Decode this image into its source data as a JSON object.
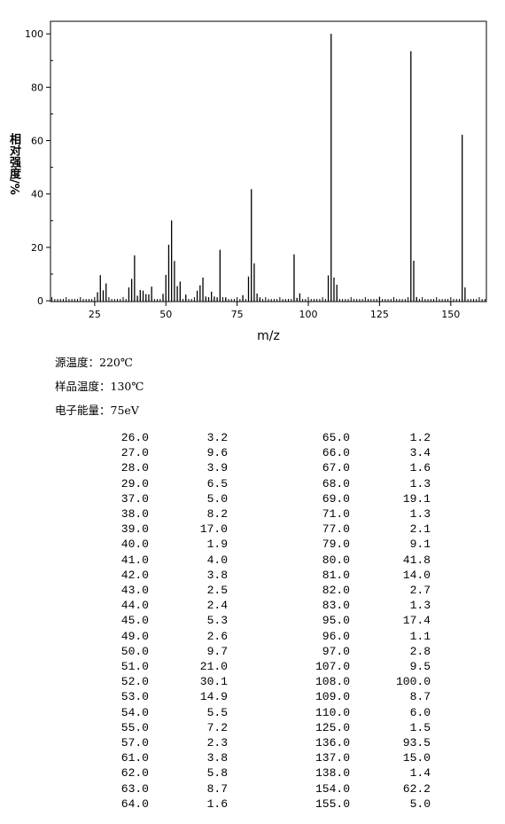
{
  "chart_data": {
    "type": "stick",
    "x_label": "m/z",
    "y_label": "相对强度/%",
    "x": [
      26,
      27,
      28,
      29,
      37,
      38,
      39,
      40,
      41,
      42,
      43,
      44,
      45,
      49,
      50,
      51,
      52,
      53,
      54,
      55,
      57,
      61,
      62,
      63,
      64,
      65,
      66,
      67,
      68,
      69,
      71,
      77,
      79,
      80,
      81,
      82,
      83,
      95,
      96,
      97,
      107,
      108,
      109,
      110,
      125,
      136,
      137,
      138,
      154,
      155
    ],
    "x_labels": [
      "26.0",
      "27.0",
      "28.0",
      "29.0",
      "37.0",
      "38.0",
      "39.0",
      "40.0",
      "41.0",
      "42.0",
      "43.0",
      "44.0",
      "45.0",
      "49.0",
      "50.0",
      "51.0",
      "52.0",
      "53.0",
      "54.0",
      "55.0",
      "57.0",
      "61.0",
      "62.0",
      "63.0",
      "64.0",
      "65.0",
      "66.0",
      "67.0",
      "68.0",
      "69.0",
      "71.0",
      "77.0",
      "79.0",
      "80.0",
      "81.0",
      "82.0",
      "83.0",
      "95.0",
      "96.0",
      "97.0",
      "107.0",
      "108.0",
      "109.0",
      "110.0",
      "125.0",
      "136.0",
      "137.0",
      "138.0",
      "154.0",
      "155.0"
    ],
    "values": [
      3.2,
      9.6,
      3.9,
      6.5,
      5.0,
      8.2,
      17.0,
      1.9,
      4.0,
      3.8,
      2.5,
      2.4,
      5.3,
      2.6,
      9.7,
      21.0,
      30.1,
      14.9,
      5.5,
      7.2,
      2.3,
      3.8,
      5.8,
      8.7,
      1.6,
      1.2,
      3.4,
      1.6,
      1.3,
      19.1,
      1.3,
      2.1,
      9.1,
      41.8,
      14.0,
      2.7,
      1.3,
      17.4,
      1.1,
      2.8,
      9.5,
      100.0,
      8.7,
      6.0,
      1.5,
      93.5,
      15.0,
      1.4,
      62.2,
      5.0
    ],
    "value_labels": [
      "3.2",
      "9.6",
      "3.9",
      "6.5",
      "5.0",
      "8.2",
      "17.0",
      "1.9",
      "4.0",
      "3.8",
      "2.5",
      "2.4",
      "5.3",
      "2.6",
      "9.7",
      "21.0",
      "30.1",
      "14.9",
      "5.5",
      "7.2",
      "2.3",
      "3.8",
      "5.8",
      "8.7",
      "1.6",
      "1.2",
      "3.4",
      "1.6",
      "1.3",
      "19.1",
      "1.3",
      "2.1",
      "9.1",
      "41.8",
      "14.0",
      "2.7",
      "1.3",
      "17.4",
      "1.1",
      "2.8",
      "9.5",
      "100.0",
      "8.7",
      "6.0",
      "1.5",
      "93.5",
      "15.0",
      "1.4",
      "62.2",
      "5.0"
    ],
    "color": "#000000",
    "xlim": [
      9.5,
      162.5
    ],
    "xticks": [
      25,
      50,
      75,
      100,
      125,
      150
    ],
    "ylim": [
      -0.3,
      104.7
    ],
    "yticks": [
      0,
      20,
      40,
      60,
      80,
      100
    ]
  },
  "conditions": [
    "源温度：220℃",
    "样品温度：130℃",
    "电子能量：75eV"
  ]
}
